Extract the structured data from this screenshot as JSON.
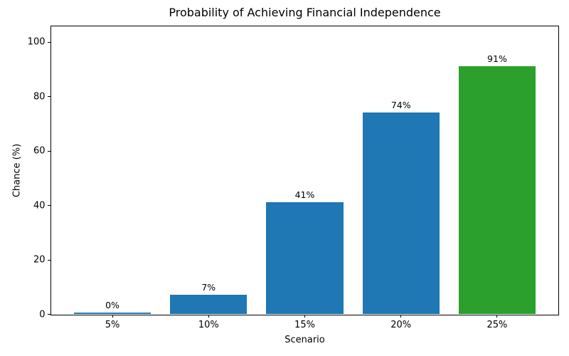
{
  "chart_data": {
    "type": "bar",
    "title": "Probability of Achieving Financial Independence",
    "xlabel": "Scenario",
    "ylabel": "Chance (%)",
    "categories": [
      "5%",
      "10%",
      "15%",
      "20%",
      "25%"
    ],
    "values": [
      0.4,
      7,
      41,
      74,
      91
    ],
    "bar_labels": [
      "0%",
      "7%",
      "41%",
      "74%",
      "91%"
    ],
    "bar_colors": [
      "#1f77b4",
      "#1f77b4",
      "#1f77b4",
      "#1f77b4",
      "#2ca02c"
    ],
    "yticks": [
      0,
      20,
      40,
      60,
      80,
      100
    ],
    "ylim": [
      0,
      106
    ],
    "grid": false,
    "legend_position": "none",
    "background_color": "#ffffff",
    "axis_color": "#000000"
  }
}
